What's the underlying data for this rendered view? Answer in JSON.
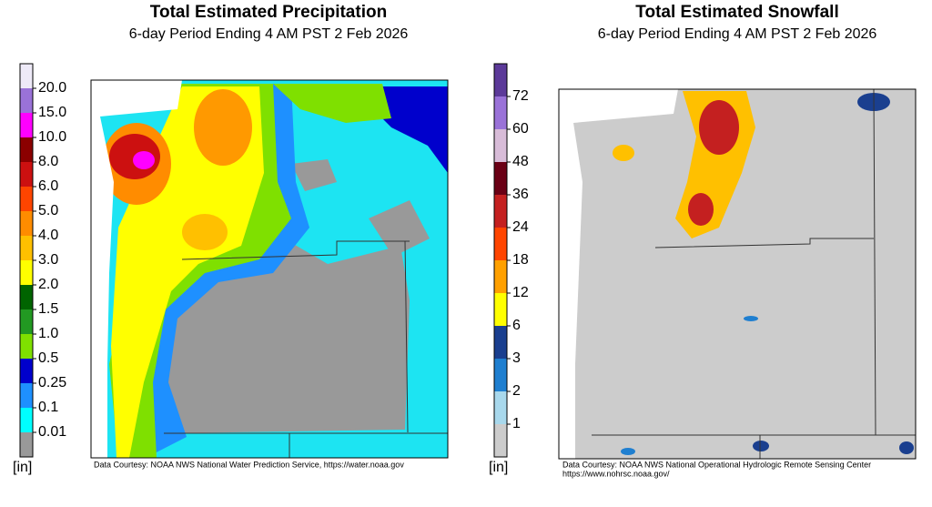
{
  "panels": [
    {
      "title": "Total Estimated Precipitation",
      "subtitle": "6-day Period Ending 4 AM PST 2 Feb 2026",
      "unit": "[in]",
      "credit": [
        "Data Courtesy: NOAA NWS National Water Prediction Service, https://water.noaa.gov"
      ],
      "legend": {
        "labels": [
          "20.0",
          "15.0",
          "10.0",
          "8.0",
          "6.0",
          "5.0",
          "4.0",
          "3.0",
          "2.0",
          "1.5",
          "1.0",
          "0.5",
          "0.25",
          "0.1",
          "0.01"
        ],
        "colors": [
          "#eeeaf8",
          "#9a72d8",
          "#ff00ff",
          "#8b0000",
          "#cc1010",
          "#ff4500",
          "#ff8c00",
          "#ffc000",
          "#ffff00",
          "#006400",
          "#229922",
          "#7fe000",
          "#0000cc",
          "#1e90ff",
          "#00ffff",
          "#999999"
        ]
      }
    },
    {
      "title": "Total Estimated Snowfall",
      "subtitle": "6-day Period Ending 4 AM PST 2 Feb 2026",
      "unit": "[in]",
      "credit": [
        "Data Courtesy: NOAA NWS National Operational Hydrologic Remote Sensing Center",
        "https://www.nohrsc.noaa.gov/"
      ],
      "legend": {
        "labels": [
          "72",
          "60",
          "48",
          "36",
          "24",
          "18",
          "12",
          "6",
          "3",
          "2",
          "1"
        ],
        "colors": [
          "#5c3a99",
          "#9a72d8",
          "#d8bcd8",
          "#6a0015",
          "#c42020",
          "#ff4500",
          "#ffa000",
          "#ffff00",
          "#1a3f8f",
          "#1f7fd0",
          "#a8d8ec",
          "#cccccc"
        ]
      }
    }
  ]
}
